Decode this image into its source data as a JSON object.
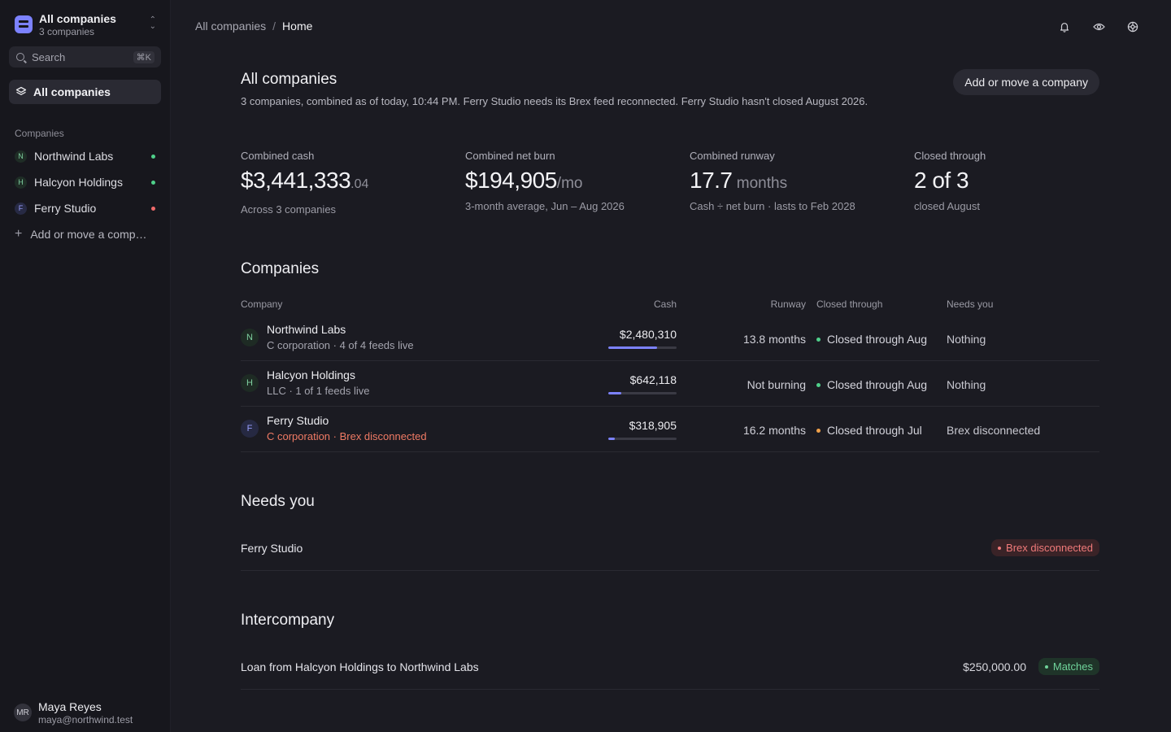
{
  "sidebar": {
    "workspace_title": "All companies",
    "workspace_sub": "3 companies",
    "search_label": "Search",
    "search_shortcut": "⌘K",
    "nav_all": "All companies",
    "section_label": "Companies",
    "companies": [
      {
        "initial": "N",
        "name": "Northwind Labs",
        "status": "green"
      },
      {
        "initial": "H",
        "name": "Halcyon Holdings",
        "status": "green"
      },
      {
        "initial": "F",
        "name": "Ferry Studio",
        "status": "red"
      }
    ],
    "add_label": "Add or move a company",
    "user": {
      "initials": "MR",
      "name": "Maya Reyes",
      "email": "maya@northwind.test"
    }
  },
  "breadcrumb": {
    "root": "All companies",
    "sep": "/",
    "current": "Home"
  },
  "top_icons": [
    "bell-icon",
    "eye-icon",
    "settings-icon"
  ],
  "header": {
    "title": "All companies",
    "subtitle": "3 companies, combined as of today, 10:44 PM. Ferry Studio needs its Brex feed reconnected. Ferry Studio hasn't closed August 2026.",
    "add_button": "Add or move a company"
  },
  "stats": {
    "cash": {
      "label": "Combined cash",
      "value": "$3,441,333",
      "suffix": ".04",
      "note": "Across 3 companies"
    },
    "burn": {
      "label": "Combined net burn",
      "value": "$194,905",
      "suffix": "/mo",
      "note": "3-month average, Jun – Aug 2026"
    },
    "runway": {
      "label": "Combined runway",
      "value": "17.7",
      "suffix": " months",
      "note": "Cash ÷ net burn · lasts to Feb 2028"
    },
    "closed": {
      "label": "Closed through",
      "value": "2 of 3",
      "note": "closed August"
    }
  },
  "companies_section": {
    "title": "Companies",
    "columns": {
      "company": "Company",
      "cash": "Cash",
      "runway": "Runway",
      "closed": "Closed through",
      "needs": "Needs you"
    },
    "rows": [
      {
        "initial": "N",
        "name": "Northwind Labs",
        "sub": "C corporation · 4 of 4 feeds live",
        "cash": "$2,480,310",
        "cash_share": 0.72,
        "runway": "13.8 months",
        "closed": "Closed through Aug",
        "closed_status": "green",
        "needs": "Nothing"
      },
      {
        "initial": "H",
        "name": "Halcyon Holdings",
        "sub": "LLC · 1 of 1 feeds live",
        "cash": "$642,118",
        "cash_share": 0.19,
        "runway": "Not burning",
        "closed": "Closed through Aug",
        "closed_status": "green",
        "needs": "Nothing"
      },
      {
        "initial": "F",
        "name": "Ferry Studio",
        "sub": "C corporation · Brex disconnected",
        "cash": "$318,905",
        "cash_share": 0.09,
        "runway": "16.2 months",
        "closed": "Closed through Jul",
        "closed_status": "orange",
        "needs": "Brex disconnected"
      }
    ]
  },
  "needs_section": {
    "title": "Needs you",
    "items": [
      {
        "label": "Ferry Studio",
        "badge": "Brex disconnected"
      }
    ]
  },
  "intercompany_section": {
    "title": "Intercompany",
    "items": [
      {
        "label": "Loan from Halcyon Holdings to Northwind Labs",
        "amount": "$250,000.00",
        "badge": "Matches"
      }
    ]
  }
}
